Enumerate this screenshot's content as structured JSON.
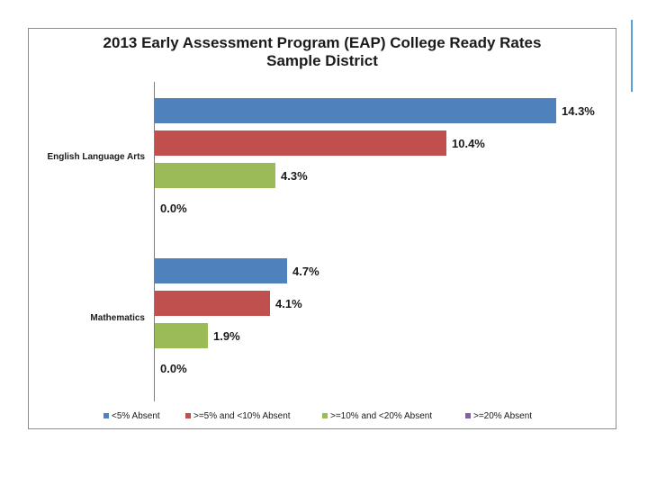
{
  "chart_data": {
    "type": "bar",
    "orientation": "horizontal",
    "title": "2013 Early Assessment Program (EAP) College Ready Rates",
    "subtitle": "Sample District",
    "categories": [
      "English Language Arts",
      "Mathematics"
    ],
    "series": [
      {
        "name": "<5% Absent",
        "color": "#4f81bd",
        "values": [
          14.3,
          4.7
        ],
        "labels": [
          "14.3%",
          "4.7%"
        ]
      },
      {
        "name": ">=5% and <10% Absent",
        "color": "#c0504d",
        "values": [
          10.4,
          4.1
        ],
        "labels": [
          "10.4%",
          "4.1%"
        ]
      },
      {
        "name": ">=10% and <20% Absent",
        "color": "#9bbb59",
        "values": [
          4.3,
          1.9
        ],
        "labels": [
          "4.3%",
          "1.9%"
        ]
      },
      {
        "name": ">=20% Absent",
        "color": "#8064a2",
        "values": [
          0.0,
          0.0
        ],
        "labels": [
          "0.0%",
          "0.0%"
        ]
      }
    ],
    "xlabel": "",
    "ylabel": "",
    "xlim": [
      0,
      14.3
    ],
    "grid": false,
    "legend_position": "bottom"
  }
}
